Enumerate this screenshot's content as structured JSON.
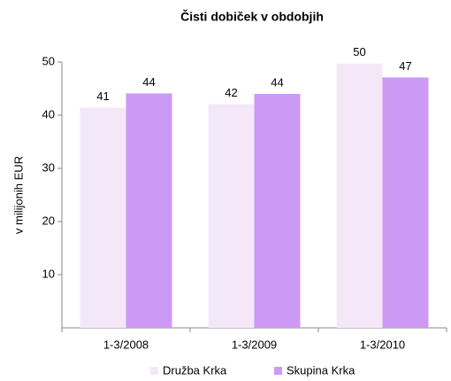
{
  "chart_data": {
    "type": "bar",
    "title": "Čisti dobiček v obdobjih",
    "ylabel": "v milijonih EUR",
    "categories": [
      "1-3/2008",
      "1-3/2009",
      "1-3/2010"
    ],
    "series": [
      {
        "name": "Družba Krka",
        "color": "#f4e8f8",
        "values": [
          41.4,
          42.1,
          49.7
        ],
        "value_labels": [
          "41",
          "42",
          "50"
        ]
      },
      {
        "name": "Skupina Krka",
        "color": "#cc99f5",
        "values": [
          44.1,
          44.0,
          47.1
        ],
        "value_labels": [
          "44",
          "44",
          "47"
        ]
      }
    ],
    "ylim": [
      0,
      50
    ],
    "yticks": [
      10,
      20,
      30,
      40,
      50
    ],
    "grid": false,
    "legend": "bottom"
  }
}
